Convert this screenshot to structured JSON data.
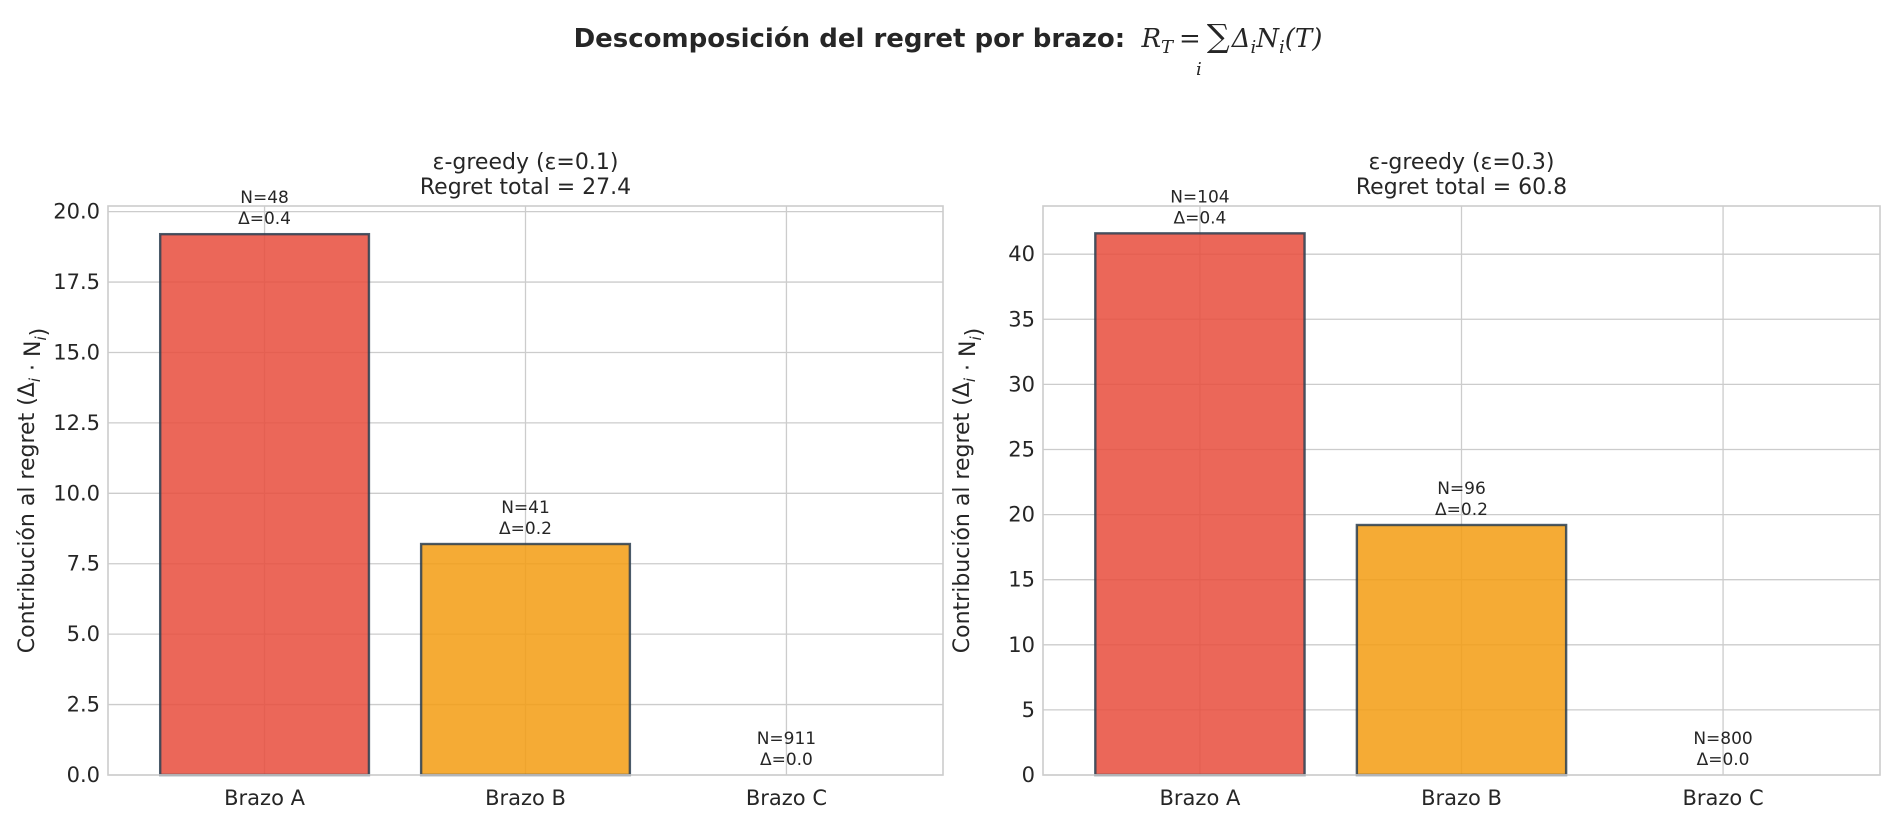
{
  "figure": {
    "suptitle_text": "Descomposición del regret por brazo:",
    "suptitle_formula": "R_T = Σ_i Δ_i N_i(T)"
  },
  "chart_data": [
    {
      "type": "bar",
      "title": "ε-greedy (ε=0.1)",
      "subtitle": "Regret total = 27.4",
      "ylabel": "Contribución al regret (Δ_i · N_i)",
      "categories": [
        "Brazo A",
        "Brazo B",
        "Brazo C"
      ],
      "values": [
        19.2,
        8.2,
        0.0
      ],
      "annotations": [
        {
          "n": "N=48",
          "delta": "Δ=0.4"
        },
        {
          "n": "N=41",
          "delta": "Δ=0.2"
        },
        {
          "n": "N=911",
          "delta": "Δ=0.0"
        }
      ],
      "colors": [
        "#e74c3c",
        "#f39c12",
        "#2ecc71"
      ],
      "ylim": [
        0,
        20.2
      ],
      "yticks": [
        0,
        2.5,
        5,
        7.5,
        10,
        12.5,
        15,
        17.5,
        20
      ],
      "ytick_labels": [
        "0.0",
        "2.5",
        "5.0",
        "7.5",
        "10.0",
        "12.5",
        "15.0",
        "17.5",
        "20.0"
      ],
      "grid": true
    },
    {
      "type": "bar",
      "title": "ε-greedy (ε=0.3)",
      "subtitle": "Regret total = 60.8",
      "ylabel": "Contribución al regret (Δ_i · N_i)",
      "categories": [
        "Brazo A",
        "Brazo B",
        "Brazo C"
      ],
      "values": [
        41.6,
        19.2,
        0.0
      ],
      "annotations": [
        {
          "n": "N=104",
          "delta": "Δ=0.4"
        },
        {
          "n": "N=96",
          "delta": "Δ=0.2"
        },
        {
          "n": "N=800",
          "delta": "Δ=0.0"
        }
      ],
      "colors": [
        "#e74c3c",
        "#f39c12",
        "#2ecc71"
      ],
      "ylim": [
        0,
        43.7
      ],
      "yticks": [
        0,
        5,
        10,
        15,
        20,
        25,
        30,
        35,
        40
      ],
      "ytick_labels": [
        "0",
        "5",
        "10",
        "15",
        "20",
        "25",
        "30",
        "35",
        "40"
      ],
      "grid": true
    }
  ]
}
